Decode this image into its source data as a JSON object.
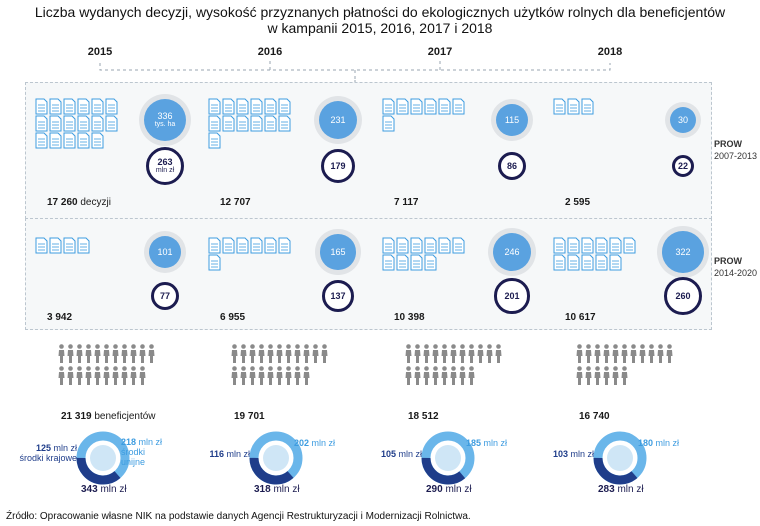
{
  "title_line1": "Liczba wydanych decyzji, wysokość przyznanych płatności do ekologicznych użytków rolnych dla beneficjentów",
  "title_line2": "w kampanii 2015, 2016, 2017 i 2018",
  "source": "Źródło: Opracowanie własne NIK na podstawie danych Agencji Restrukturyzacji i Modernizacji Rolnictwa.",
  "colors": {
    "ha": "#5aa2e0",
    "zl": "#1c1c50",
    "doc": "#3d9ce0",
    "person": "#8a8a8a",
    "kr": "#1f3d8a",
    "ue": "#6ab6ea"
  },
  "chart_data": {
    "type": "infographic",
    "years": [
      "2015",
      "2016",
      "2017",
      "2018"
    ],
    "prow_2007": {
      "label": "PROW",
      "sublabel": "2007-2013",
      "area_ths_ha": [
        336,
        231,
        115,
        30
      ],
      "area_unit": "tys. ha",
      "payments_mln_zl": [
        263,
        179,
        86,
        22
      ],
      "payments_unit": "mln zł",
      "decisions": [
        "17 260",
        "12 707",
        "7 117",
        "2 595"
      ],
      "decisions_unit": "decyzji"
    },
    "prow_2014": {
      "label": "PROW",
      "sublabel": "2014-2020",
      "area_ths_ha": [
        101,
        165,
        246,
        322
      ],
      "payments_mln_zl": [
        77,
        137,
        201,
        260
      ],
      "decisions": [
        "3 942",
        "6 955",
        "10 398",
        "10 617"
      ]
    },
    "beneficiaries": [
      "21 319",
      "19 701",
      "18 512",
      "16 740"
    ],
    "beneficiaries_unit": "beneficjentów",
    "funding": {
      "krajowe_mln_zl": [
        125,
        116,
        105,
        103
      ],
      "unijne_mln_zl": [
        218,
        202,
        185,
        180
      ],
      "total_mln_zl": [
        343,
        318,
        290,
        283
      ],
      "unit": "mln zł",
      "krajowe_label": "środki krajowe",
      "unijne_label_1": "środki",
      "unijne_label_2": "unijne"
    }
  }
}
